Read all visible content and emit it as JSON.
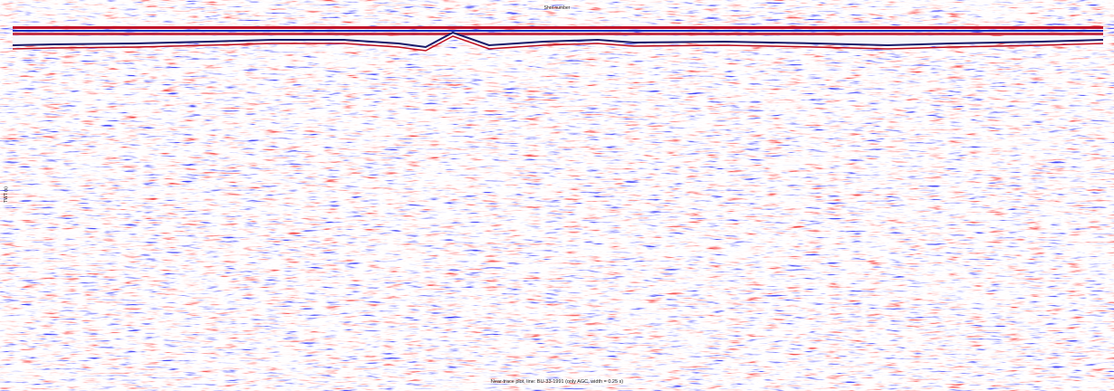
{
  "plot": {
    "title": "Near-trace plot, line: BU-33-1991  (only AGC, width = 0.25 s)",
    "x_label": "Shot number",
    "y_label": "TWT (s)"
  }
}
